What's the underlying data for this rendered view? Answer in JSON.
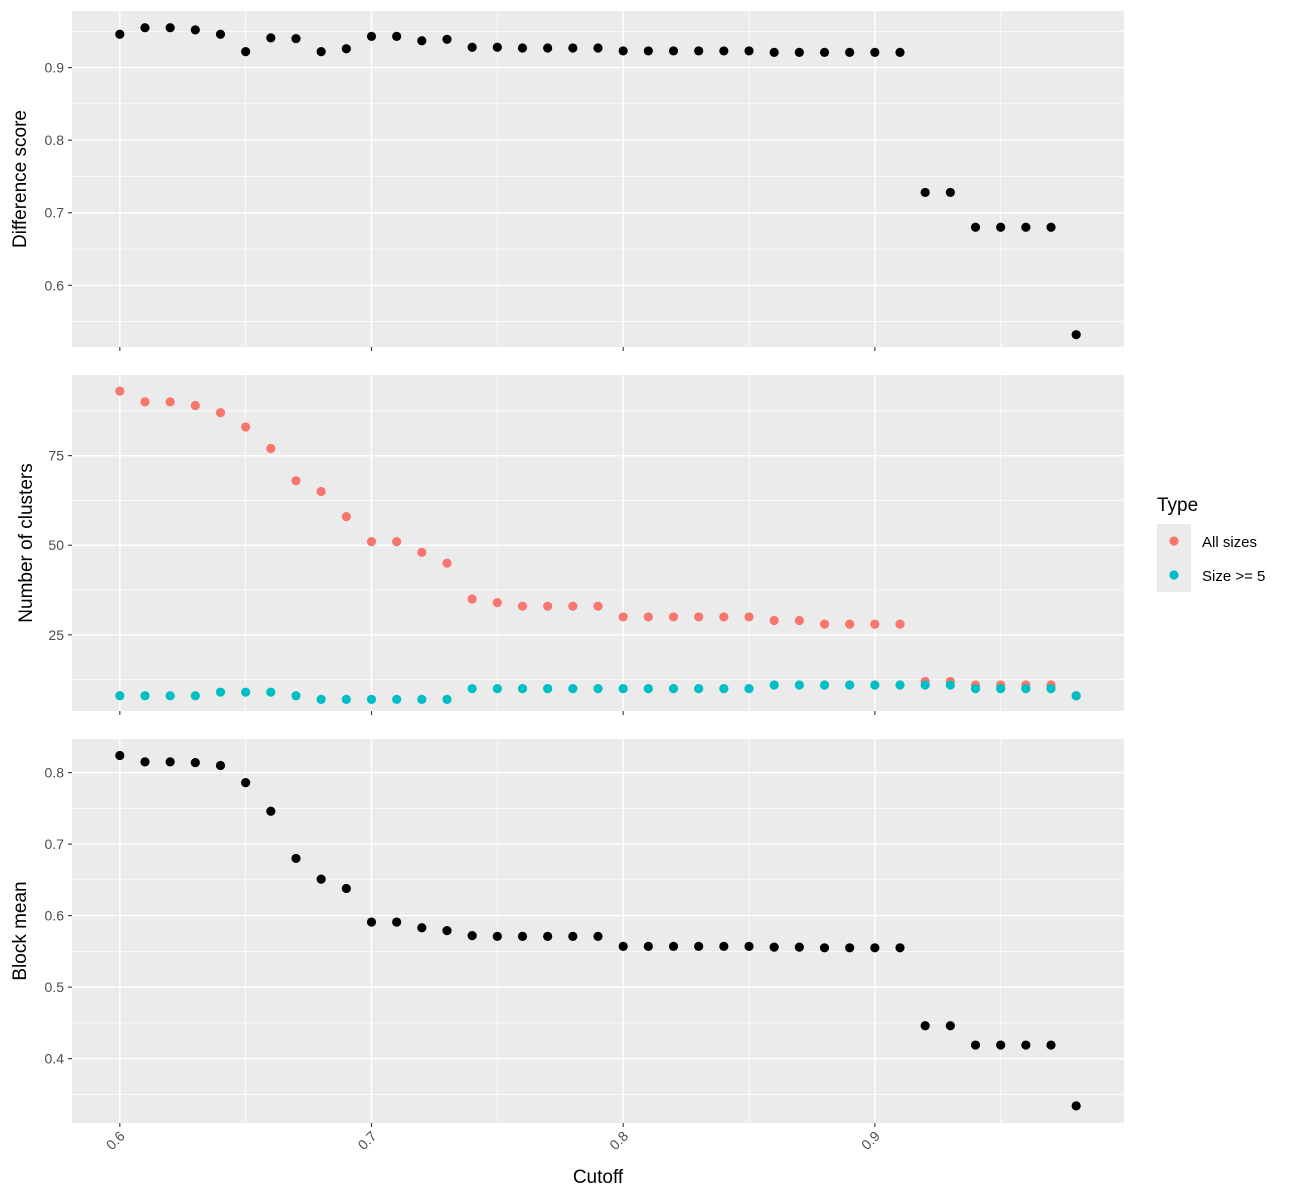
{
  "chart_data": {
    "type": "scatter",
    "xlabel": "Cutoff",
    "xlim": [
      0.581,
      0.999
    ],
    "xticks": [
      0.6,
      0.7,
      0.8,
      0.9
    ],
    "xtick_labels": [
      "0.6",
      "0.7",
      "0.8",
      "0.9"
    ],
    "x": [
      0.6,
      0.61,
      0.62,
      0.63,
      0.64,
      0.65,
      0.66,
      0.67,
      0.68,
      0.69,
      0.7,
      0.71,
      0.72,
      0.73,
      0.74,
      0.75,
      0.76,
      0.77,
      0.78,
      0.79,
      0.8,
      0.81,
      0.82,
      0.83,
      0.84,
      0.85,
      0.86,
      0.87,
      0.88,
      0.89,
      0.9,
      0.91,
      0.92,
      0.93,
      0.94,
      0.95,
      0.96,
      0.97,
      0.98
    ],
    "panels": [
      {
        "ylabel": "Difference score",
        "ylim": [
          0.515,
          0.978
        ],
        "yticks": [
          0.6,
          0.7,
          0.8,
          0.9
        ],
        "ytick_labels": [
          "0.6",
          "0.7",
          "0.8",
          "0.9"
        ],
        "series": [
          {
            "color": "#000000",
            "values": [
              0.946,
              0.955,
              0.955,
              0.952,
              0.946,
              0.922,
              0.941,
              0.94,
              0.922,
              0.926,
              0.943,
              0.943,
              0.937,
              0.939,
              0.928,
              0.928,
              0.927,
              0.927,
              0.927,
              0.927,
              0.923,
              0.923,
              0.923,
              0.923,
              0.923,
              0.923,
              0.921,
              0.921,
              0.921,
              0.921,
              0.921,
              0.921,
              0.728,
              0.728,
              0.68,
              0.68,
              0.68,
              0.68,
              0.532
            ]
          }
        ]
      },
      {
        "ylabel": "Number of clusters",
        "ylim": [
          3.75,
          97.5
        ],
        "yticks": [
          25,
          50,
          75
        ],
        "ytick_labels": [
          "25",
          "50",
          "75"
        ],
        "series": [
          {
            "name": "All sizes",
            "color": "#f8766d",
            "values": [
              93,
              90,
              90,
              89,
              87,
              83,
              77,
              68,
              65,
              58,
              51,
              51,
              48,
              45,
              35,
              34,
              33,
              33,
              33,
              33,
              30,
              30,
              30,
              30,
              30,
              30,
              29,
              29,
              28,
              28,
              28,
              28,
              12,
              12,
              11,
              11,
              11,
              11,
              8
            ]
          },
          {
            "name": "Size >= 5",
            "color": "#00bfc4",
            "values": [
              8,
              8,
              8,
              8,
              9,
              9,
              9,
              8,
              7,
              7,
              7,
              7,
              7,
              7,
              10,
              10,
              10,
              10,
              10,
              10,
              10,
              10,
              10,
              10,
              10,
              10,
              11,
              11,
              11,
              11,
              11,
              11,
              11,
              11,
              10,
              10,
              10,
              10,
              8
            ]
          }
        ]
      },
      {
        "ylabel": "Block mean",
        "ylim": [
          0.31,
          0.847
        ],
        "yticks": [
          0.4,
          0.5,
          0.6,
          0.7,
          0.8
        ],
        "ytick_labels": [
          "0.4",
          "0.5",
          "0.6",
          "0.7",
          "0.8"
        ],
        "series": [
          {
            "color": "#000000",
            "values": [
              0.824,
              0.815,
              0.815,
              0.814,
              0.81,
              0.786,
              0.746,
              0.68,
              0.651,
              0.638,
              0.591,
              0.591,
              0.583,
              0.579,
              0.572,
              0.571,
              0.571,
              0.571,
              0.571,
              0.571,
              0.557,
              0.557,
              0.557,
              0.557,
              0.557,
              0.557,
              0.556,
              0.556,
              0.555,
              0.555,
              0.555,
              0.555,
              0.446,
              0.446,
              0.419,
              0.419,
              0.419,
              0.419,
              0.334
            ]
          }
        ]
      }
    ],
    "legend": {
      "title": "Type",
      "position": "right",
      "entries": [
        {
          "label": "All sizes",
          "color": "#f8766d"
        },
        {
          "label": "Size >= 5",
          "color": "#00bfc4"
        }
      ]
    },
    "grid": true
  }
}
